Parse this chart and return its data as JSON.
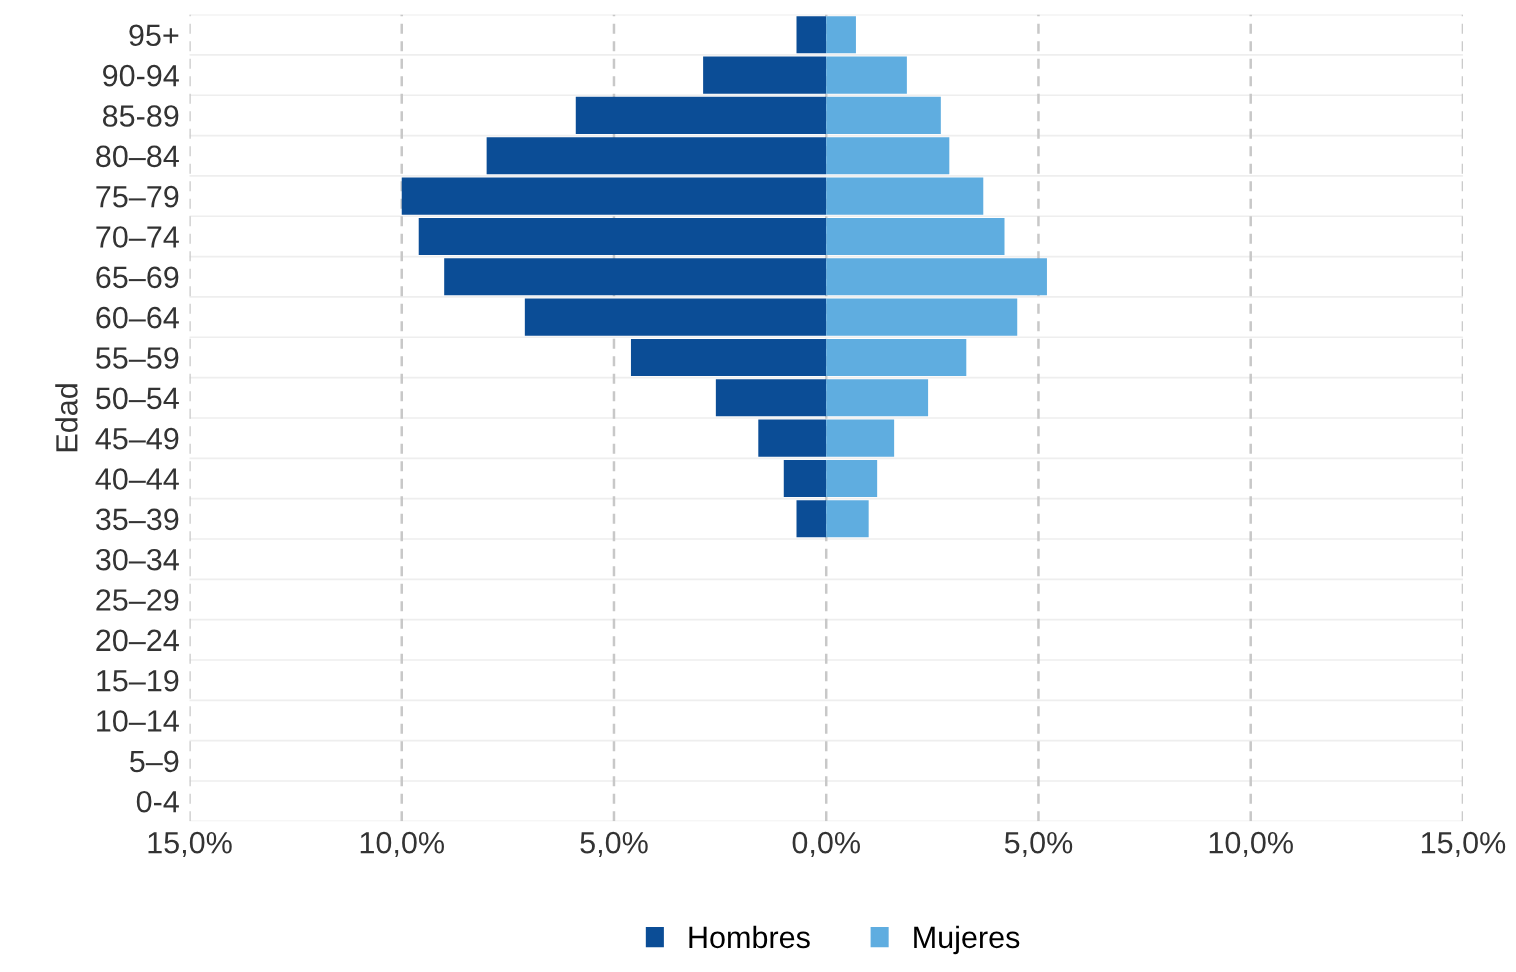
{
  "chart_data": {
    "type": "bar",
    "orientation": "horizontal",
    "stacked": true,
    "ylabel": "Edad",
    "categories": [
      "95+",
      "90-94",
      "85-89",
      "80–84",
      "75–79",
      "70–74",
      "65–69",
      "60–64",
      "55–59",
      "50–54",
      "45–49",
      "40–44",
      "35–39",
      "30–34",
      "25–29",
      "20–24",
      "15–19",
      "10–14",
      "5–9",
      "0-4"
    ],
    "series": [
      {
        "name": "Hombres",
        "color": "#0b4d96",
        "values": [
          -0.7,
          -2.9,
          -5.9,
          -8.0,
          -10.0,
          -9.6,
          -9.0,
          -7.1,
          -4.6,
          -2.6,
          -1.6,
          -1.0,
          -0.7,
          0,
          0,
          0,
          0,
          0,
          0,
          0
        ]
      },
      {
        "name": "Mujeres",
        "color": "#5fade0",
        "values": [
          0.7,
          1.9,
          2.7,
          2.9,
          3.7,
          4.2,
          5.2,
          4.5,
          3.3,
          2.4,
          1.6,
          1.2,
          1.0,
          0,
          0,
          0,
          0,
          0,
          0,
          0
        ]
      }
    ],
    "xlim": [
      -15,
      15
    ],
    "xticks": [
      {
        "value": -15,
        "label": "15,0%"
      },
      {
        "value": -10,
        "label": "10,0%"
      },
      {
        "value": -5,
        "label": "5,0%"
      },
      {
        "value": 0,
        "label": "0,0%"
      },
      {
        "value": 5,
        "label": "5,0%"
      },
      {
        "value": 10,
        "label": "10,0%"
      },
      {
        "value": 15,
        "label": "15,0%"
      }
    ],
    "grid": "x",
    "line_style": "dashed",
    "legend": "bottom"
  }
}
